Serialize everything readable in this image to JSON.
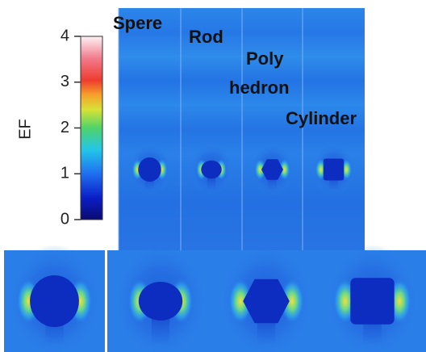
{
  "colorbar": {
    "label": "EF",
    "lim": [
      0,
      4
    ],
    "ticks": [
      0,
      1,
      2,
      3,
      4
    ]
  },
  "panels": [
    [
      "Spere"
    ],
    [
      "Rod"
    ],
    [
      "Poly",
      "hedron"
    ],
    [
      "Cylinder"
    ]
  ]
}
